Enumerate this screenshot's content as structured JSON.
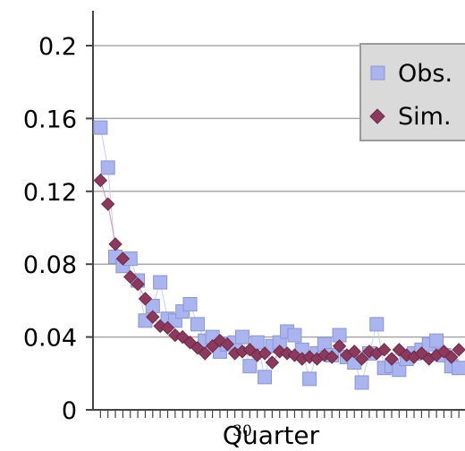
{
  "chart_data": {
    "type": "scatter",
    "title": "",
    "xlabel": "Quarter",
    "ylabel": "",
    "xlim": [
      0,
      49
    ],
    "ylim": [
      0,
      0.22
    ],
    "yticks": [
      0,
      0.04,
      0.08,
      0.12,
      0.16,
      0.2
    ],
    "ytick_labels": [
      "0",
      "0.04",
      "0.08",
      "0.12",
      "0.16",
      "0.2"
    ],
    "xtick_labels_visible": [
      "30"
    ],
    "grid": "horizontal",
    "legend_position": "top-right",
    "series": [
      {
        "name": "Obs.",
        "marker": "square",
        "color": "#aab4ee",
        "x": [
          1,
          2,
          3,
          4,
          5,
          6,
          7,
          8,
          9,
          10,
          11,
          12,
          13,
          14,
          15,
          16,
          17,
          18,
          19,
          20,
          21,
          22,
          23,
          24,
          25,
          26,
          27,
          28,
          29,
          30,
          31,
          32,
          33,
          34,
          35,
          36,
          37,
          38,
          39,
          40,
          41,
          42,
          43,
          44,
          45,
          46,
          47,
          48,
          49
        ],
        "values": [
          0.155,
          0.133,
          0.084,
          0.079,
          0.083,
          0.071,
          0.049,
          0.057,
          0.07,
          0.05,
          0.049,
          0.054,
          0.058,
          0.047,
          0.038,
          0.04,
          0.032,
          0.036,
          0.037,
          0.04,
          0.024,
          0.037,
          0.018,
          0.035,
          0.037,
          0.043,
          0.041,
          0.033,
          0.017,
          0.031,
          0.036,
          0.03,
          0.041,
          0.029,
          0.026,
          0.015,
          0.031,
          0.047,
          0.023,
          0.024,
          0.022,
          0.028,
          0.031,
          0.033,
          0.036,
          0.038,
          0.03,
          0.024,
          0.023
        ]
      },
      {
        "name": "Sim.",
        "marker": "diamond",
        "color": "#8b3a5e",
        "x": [
          1,
          2,
          3,
          4,
          5,
          6,
          7,
          8,
          9,
          10,
          11,
          12,
          13,
          14,
          15,
          16,
          17,
          18,
          19,
          20,
          21,
          22,
          23,
          24,
          25,
          26,
          27,
          28,
          29,
          30,
          31,
          32,
          33,
          34,
          35,
          36,
          37,
          38,
          39,
          40,
          41,
          42,
          43,
          44,
          45,
          46,
          47,
          48,
          49
        ],
        "values": [
          0.126,
          0.113,
          0.091,
          0.083,
          0.073,
          0.069,
          0.061,
          0.051,
          0.046,
          0.045,
          0.041,
          0.04,
          0.037,
          0.034,
          0.031,
          0.035,
          0.038,
          0.036,
          0.031,
          0.032,
          0.033,
          0.03,
          0.031,
          0.026,
          0.032,
          0.031,
          0.03,
          0.028,
          0.029,
          0.028,
          0.03,
          0.029,
          0.035,
          0.03,
          0.032,
          0.028,
          0.032,
          0.031,
          0.033,
          0.028,
          0.033,
          0.03,
          0.029,
          0.031,
          0.028,
          0.03,
          0.032,
          0.029,
          0.033
        ]
      }
    ]
  },
  "legend": {
    "entries": [
      {
        "label": "Obs."
      },
      {
        "label": "Sim."
      }
    ]
  }
}
